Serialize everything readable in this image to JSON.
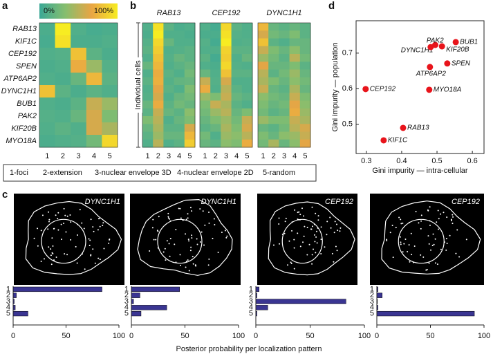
{
  "figure": {
    "panel_labels": [
      "a",
      "b",
      "c",
      "d"
    ],
    "legend": [
      "1-foci",
      "2-extension",
      "3-nuclear envelope 3D",
      "4-nuclear envelope 2D",
      "5-random"
    ],
    "c_xlabel": "Posterior probability per localization pattern"
  },
  "chart_data": [
    {
      "type": "heatmap",
      "rows": [
        "RAB13",
        "KIF1C",
        "CEP192",
        "SPEN",
        "ATP6AP2",
        "DYNC1H1",
        "BUB1",
        "PAK2",
        "KIF20B",
        "MYO18A"
      ],
      "columns": [
        "1",
        "2",
        "3",
        "4",
        "5"
      ],
      "values": [
        [
          8,
          100,
          10,
          6,
          8
        ],
        [
          6,
          95,
          8,
          8,
          10
        ],
        [
          10,
          12,
          80,
          15,
          8
        ],
        [
          8,
          10,
          70,
          40,
          12
        ],
        [
          10,
          8,
          20,
          75,
          15
        ],
        [
          80,
          15,
          8,
          15,
          10
        ],
        [
          10,
          8,
          15,
          55,
          40
        ],
        [
          12,
          10,
          20,
          60,
          30
        ],
        [
          10,
          15,
          10,
          60,
          45
        ],
        [
          8,
          10,
          12,
          25,
          90
        ]
      ],
      "zlim": [
        0,
        100
      ],
      "colorscale": [
        "#3aa896",
        "#86be6e",
        "#e9a544",
        "#f7ec22"
      ],
      "colorbar_ticks": [
        {
          "value": 0,
          "label": "0%"
        },
        {
          "value": 100,
          "label": "100%"
        }
      ]
    },
    {
      "type": "heatmap",
      "title": "RAB13",
      "ylabel": "Individual cells",
      "columns": [
        "1",
        "2",
        "3",
        "4",
        "5"
      ],
      "values": [
        [
          10,
          95,
          15,
          8,
          10
        ],
        [
          8,
          100,
          10,
          10,
          8
        ],
        [
          12,
          90,
          20,
          10,
          10
        ],
        [
          15,
          85,
          10,
          12,
          15
        ],
        [
          10,
          80,
          12,
          20,
          15
        ],
        [
          20,
          75,
          10,
          15,
          20
        ],
        [
          10,
          70,
          15,
          10,
          25
        ],
        [
          15,
          72,
          12,
          18,
          20
        ],
        [
          10,
          65,
          15,
          10,
          30
        ],
        [
          12,
          60,
          10,
          20,
          25
        ],
        [
          20,
          70,
          15,
          25,
          20
        ],
        [
          15,
          55,
          20,
          15,
          35
        ],
        [
          30,
          50,
          10,
          20,
          30
        ],
        [
          20,
          45,
          15,
          15,
          60
        ],
        [
          15,
          40,
          20,
          20,
          75
        ],
        [
          10,
          50,
          10,
          15,
          85
        ]
      ],
      "zlim": [
        0,
        100
      ],
      "colorscale": [
        "#3aa896",
        "#86be6e",
        "#e9a544",
        "#f7ec22"
      ]
    },
    {
      "type": "heatmap",
      "title": "CEP192",
      "columns": [
        "1",
        "2",
        "3",
        "4",
        "5"
      ],
      "values": [
        [
          10,
          5,
          90,
          15,
          10
        ],
        [
          8,
          8,
          95,
          12,
          10
        ],
        [
          12,
          5,
          100,
          10,
          12
        ],
        [
          10,
          10,
          88,
          15,
          15
        ],
        [
          15,
          5,
          85,
          10,
          20
        ],
        [
          10,
          8,
          90,
          12,
          10
        ],
        [
          20,
          10,
          80,
          15,
          15
        ],
        [
          55,
          12,
          60,
          10,
          10
        ],
        [
          70,
          10,
          50,
          15,
          10
        ],
        [
          40,
          30,
          55,
          20,
          15
        ],
        [
          30,
          55,
          45,
          15,
          10
        ],
        [
          25,
          40,
          50,
          20,
          30
        ],
        [
          20,
          30,
          40,
          25,
          55
        ],
        [
          15,
          20,
          45,
          30,
          60
        ],
        [
          25,
          10,
          40,
          35,
          50
        ],
        [
          20,
          15,
          35,
          30,
          70
        ]
      ],
      "zlim": [
        0,
        100
      ],
      "colorscale": [
        "#3aa896",
        "#86be6e",
        "#e9a544",
        "#f7ec22"
      ]
    },
    {
      "type": "heatmap",
      "title": "DYNC1H1",
      "columns": [
        "1",
        "2",
        "3",
        "4",
        "5"
      ],
      "values": [
        [
          75,
          20,
          15,
          20,
          15
        ],
        [
          60,
          25,
          20,
          30,
          15
        ],
        [
          80,
          15,
          10,
          20,
          20
        ],
        [
          55,
          30,
          20,
          35,
          20
        ],
        [
          40,
          25,
          15,
          50,
          25
        ],
        [
          65,
          20,
          20,
          30,
          15
        ],
        [
          50,
          15,
          25,
          40,
          20
        ],
        [
          45,
          30,
          20,
          35,
          25
        ],
        [
          55,
          20,
          15,
          45,
          20
        ],
        [
          35,
          25,
          20,
          55,
          30
        ],
        [
          30,
          20,
          25,
          65,
          35
        ],
        [
          25,
          15,
          20,
          70,
          40
        ],
        [
          40,
          30,
          30,
          55,
          45
        ],
        [
          20,
          15,
          25,
          50,
          60
        ],
        [
          30,
          20,
          35,
          40,
          55
        ],
        [
          25,
          45,
          20,
          35,
          65
        ]
      ],
      "zlim": [
        0,
        100
      ],
      "colorscale": [
        "#3aa896",
        "#86be6e",
        "#e9a544",
        "#f7ec22"
      ]
    },
    {
      "type": "scatter",
      "xlabel": "Gini impurity — intra-cellular",
      "ylabel": "Gini impurity — population",
      "labels": [
        "RAB13",
        "KIF1C",
        "CEP192",
        "SPEN",
        "ATP6AP2",
        "DYNC1H1",
        "BUB1",
        "PAK2",
        "KIF20B",
        "MYO18A"
      ],
      "x": [
        0.404,
        0.349,
        0.298,
        0.529,
        0.48,
        0.495,
        0.553,
        0.482,
        0.514,
        0.478
      ],
      "y": [
        0.49,
        0.455,
        0.599,
        0.671,
        0.661,
        0.723,
        0.731,
        0.717,
        0.719,
        0.597
      ],
      "color": "#e8141b",
      "xlim": [
        0.271,
        0.633
      ],
      "ylim": [
        0.418,
        0.791
      ],
      "xticks": [
        0.3,
        0.4,
        0.5,
        0.6
      ],
      "yticks": [
        0.5,
        0.6,
        0.7
      ]
    },
    {
      "type": "barh",
      "title": "DYNC1H1",
      "categories": [
        "1",
        "2",
        "3",
        "4",
        "5"
      ],
      "values": [
        84,
        3,
        1,
        2,
        14
      ],
      "color": "#3a3592",
      "xlim": [
        0,
        100
      ],
      "xticks": [
        0,
        50,
        100
      ]
    },
    {
      "type": "barh",
      "title": "DYNC1H1",
      "categories": [
        "1",
        "2",
        "3",
        "4",
        "5"
      ],
      "values": [
        45,
        8,
        2,
        33,
        9
      ],
      "color": "#3a3592",
      "xlim": [
        0,
        100
      ],
      "xticks": [
        0,
        50,
        100
      ]
    },
    {
      "type": "barh",
      "title": "CEP192",
      "categories": [
        "1",
        "2",
        "3",
        "4",
        "5"
      ],
      "values": [
        3,
        1,
        83,
        11,
        1
      ],
      "color": "#3a3592",
      "xlim": [
        0,
        100
      ],
      "xticks": [
        0,
        50,
        100
      ]
    },
    {
      "type": "barh",
      "title": "CEP192",
      "categories": [
        "1",
        "2",
        "3",
        "4",
        "5"
      ],
      "values": [
        1,
        5,
        0.5,
        1,
        91
      ],
      "color": "#3a3592",
      "xlim": [
        0,
        100
      ],
      "xticks": [
        0,
        50,
        100
      ]
    }
  ]
}
